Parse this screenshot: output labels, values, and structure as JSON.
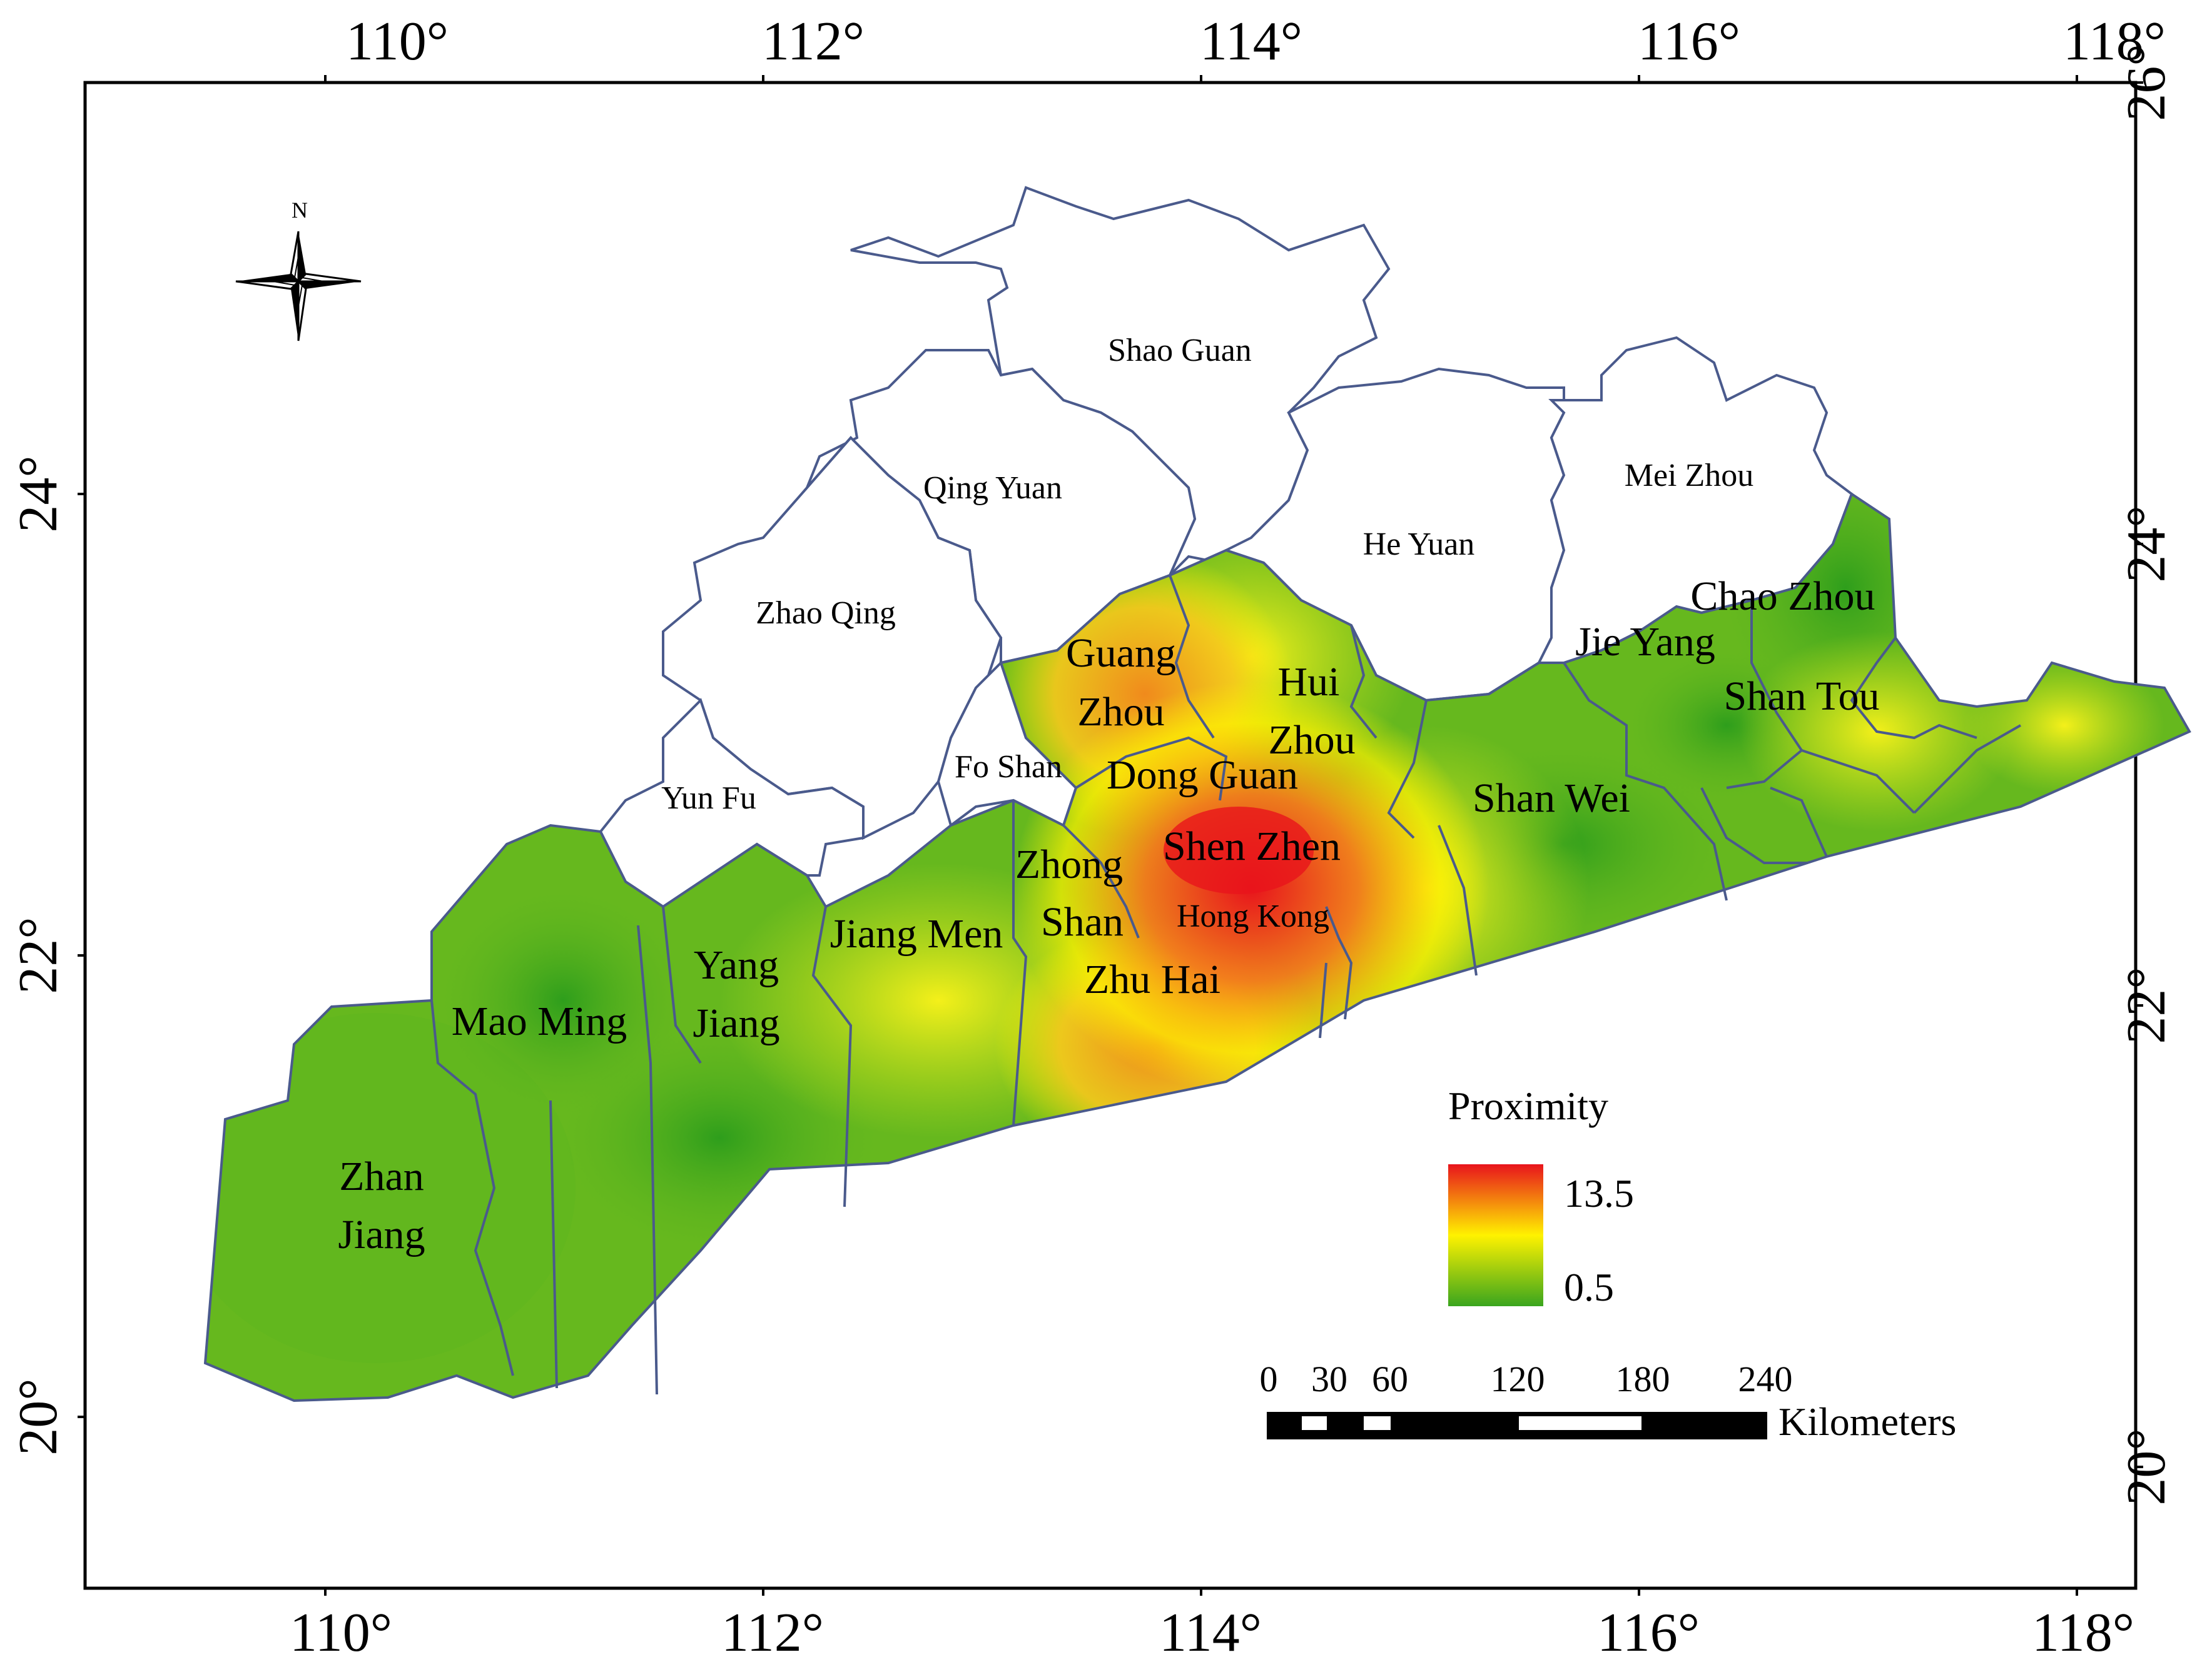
{
  "top_axis": {
    "ticks": [
      "110°",
      "112°",
      "114°",
      "116°",
      "118°"
    ]
  },
  "bottom_axis": {
    "ticks": [
      "110°",
      "112°",
      "114°",
      "116°",
      "118°"
    ]
  },
  "left_axis": {
    "ticks": [
      "24°",
      "22°",
      "20°"
    ]
  },
  "right_axis": {
    "ticks": [
      "26°",
      "24°",
      "22°",
      "20°"
    ]
  },
  "compass": {
    "label": "N"
  },
  "cities": {
    "shao_guan": "Shao Guan",
    "qing_yuan": "Qing Yuan",
    "he_yuan": "He Yuan",
    "mei_zhou": "Mei Zhou",
    "zhao_qing": "Zhao Qing",
    "chao_zhou": "Chao Zhou",
    "jie_yang": "Jie Yang",
    "shan_tou": "Shan Tou",
    "guang_1": "Guang",
    "guang_2": "Zhou",
    "hui_1": "Hui",
    "hui_2": "Zhou",
    "yun_fu": "Yun Fu",
    "fo_shan": "Fo Shan",
    "dong_guan": "Dong Guan",
    "shan_wei": "Shan Wei",
    "shen_zhen": "Shen Zhen",
    "zhong_1": "Zhong",
    "zhong_2": "Shan",
    "hong_kong": "Hong Kong",
    "jiang_men": "Jiang Men",
    "yang_1": "Yang",
    "yang_2": "Jiang",
    "mao_ming": "Mao Ming",
    "zhu_hai": "Zhu Hai",
    "zhan_1": "Zhan",
    "zhan_2": "Jiang"
  },
  "legend": {
    "title": "Proximity",
    "max_label": "13.5",
    "min_label": "0.5",
    "colors": {
      "high": "#e8141c",
      "mid": "#fff200",
      "low": "#3aa51e"
    }
  },
  "scale_bar": {
    "labels": [
      "0",
      "30",
      "60",
      "120",
      "180",
      "240"
    ],
    "unit": "Kilometers"
  }
}
